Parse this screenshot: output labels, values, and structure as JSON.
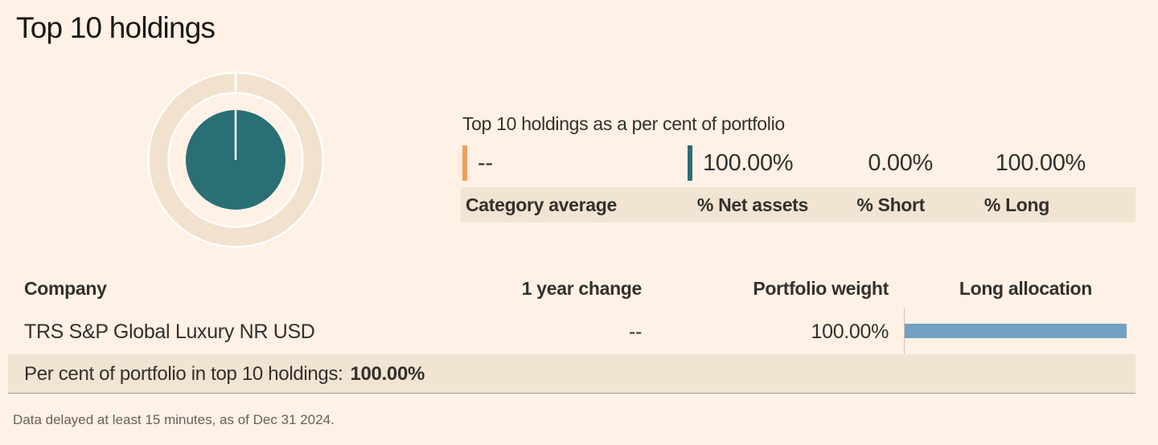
{
  "title": "Top 10 holdings",
  "summary": {
    "heading": "Top 10 holdings as a per cent of portfolio",
    "stats": [
      {
        "label": "Category average",
        "value": "--"
      },
      {
        "label": "% Net assets",
        "value": "100.00%"
      },
      {
        "label": "% Short",
        "value": "0.00%"
      },
      {
        "label": "% Long",
        "value": "100.00%"
      }
    ]
  },
  "chart_data": {
    "type": "pie",
    "title": "Top 10 holdings as a per cent of portfolio",
    "series": [
      {
        "name": "% Net assets",
        "values": [
          100.0
        ]
      },
      {
        "name": "Category average",
        "values": [
          "--"
        ]
      }
    ],
    "legend_position": "none"
  },
  "table": {
    "columns": [
      "Company",
      "1 year change",
      "Portfolio weight",
      "Long allocation"
    ],
    "rows": [
      {
        "company": "TRS S&P Global Luxury NR USD",
        "one_year_change": "--",
        "portfolio_weight": "100.00%",
        "long_allocation": 100
      }
    ],
    "footer_label": "Per cent of portfolio in top 10 holdings:",
    "footer_value": "100.00%"
  },
  "footnote": "Data delayed at least 15 minutes, as of Dec 31 2024.",
  "colors": {
    "background": "#FFF1E5",
    "band": "#F2E4D2",
    "ring_beige": "#F2E1CD",
    "net_assets_teal": "#2A6E76",
    "category_average_orange": "#EDA05C",
    "allocation_bar_blue": "#72A1C4",
    "text": "#33302E",
    "muted_text": "#66605C"
  }
}
